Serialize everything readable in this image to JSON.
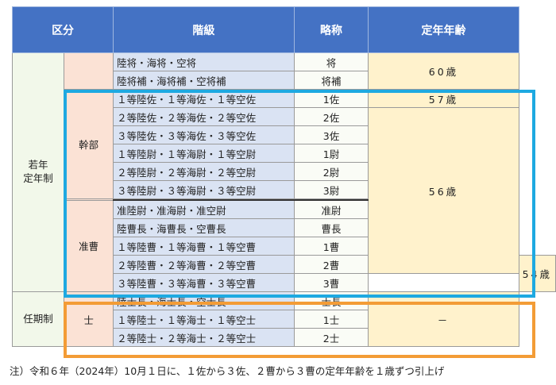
{
  "headers": {
    "category": "区分",
    "rank": "階級",
    "abbr": "略称",
    "age": "定年年齢"
  },
  "categories": {
    "wakanen": "若年\n定年制",
    "ninki": "任期制"
  },
  "subcategories": {
    "kanbu": "幹部",
    "junso": "准曹",
    "shi": "士"
  },
  "rows": [
    {
      "rank": "陸将・海将・空将",
      "abbr": "将"
    },
    {
      "rank": "陸将補・海将補・空将補",
      "abbr": "将補"
    },
    {
      "rank": "１等陸佐・１等海佐・１等空佐",
      "abbr": "1佐"
    },
    {
      "rank": "２等陸佐・２等海佐・２等空佐",
      "abbr": "2佐"
    },
    {
      "rank": "３等陸佐・３等海佐・３等空佐",
      "abbr": "3佐"
    },
    {
      "rank": "１等陸尉・１等海尉・１等空尉",
      "abbr": "1尉"
    },
    {
      "rank": "２等陸尉・２等海尉・２等空尉",
      "abbr": "2尉"
    },
    {
      "rank": "３等陸尉・３等海尉・３等空尉",
      "abbr": "3尉"
    },
    {
      "rank": "准陸尉・准海尉・准空尉",
      "abbr": "准尉"
    },
    {
      "rank": "陸曹長・海曹長・空曹長",
      "abbr": "曹長"
    },
    {
      "rank": "１等陸曹・１等海曹・１等空曹",
      "abbr": "1曹"
    },
    {
      "rank": "２等陸曹・２等海曹・２等空曹",
      "abbr": "2曹"
    },
    {
      "rank": "３等陸曹・３等海曹・３等空曹",
      "abbr": "3曹"
    },
    {
      "rank": "陸士長・海士長・空士長",
      "abbr": "士長"
    },
    {
      "rank": "１等陸士・１等海士・１等空士",
      "abbr": "1士"
    },
    {
      "rank": "２等陸士・２等海士・２等空士",
      "abbr": "2士"
    }
  ],
  "ages": {
    "a60": "60歳",
    "a57": "57歳",
    "a56": "56歳",
    "a54": "54歳",
    "none": "－"
  },
  "footnote": "注）令和６年（2024年）10月１日に、１佐から３佐、２曹から３曹の定年年齢を１歳ずつ引上げ",
  "colors": {
    "header": "#4472c4",
    "highlight_blue": "#1ea9e1",
    "highlight_orange": "#f39c36"
  }
}
